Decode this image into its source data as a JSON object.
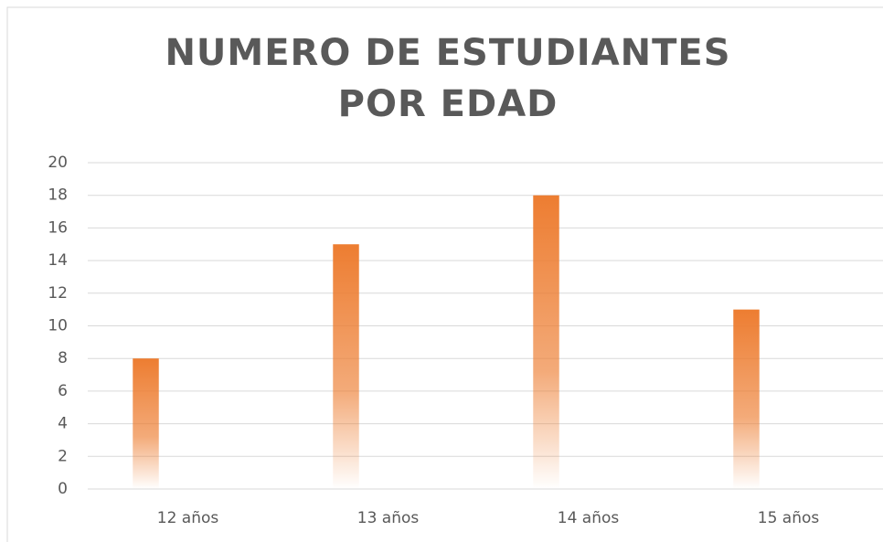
{
  "chart_data": {
    "type": "bar",
    "title": "NUMERO DE ESTUDIANTES POR EDAD",
    "categories": [
      "12 años",
      "13 años",
      "14 años",
      "15 años"
    ],
    "values": [
      8,
      15,
      18,
      11
    ],
    "color": "#ed7d31",
    "ylim": [
      0,
      20
    ],
    "yticks": [
      0,
      2,
      4,
      6,
      8,
      10,
      12,
      14,
      16,
      18,
      20
    ],
    "grid": true
  }
}
